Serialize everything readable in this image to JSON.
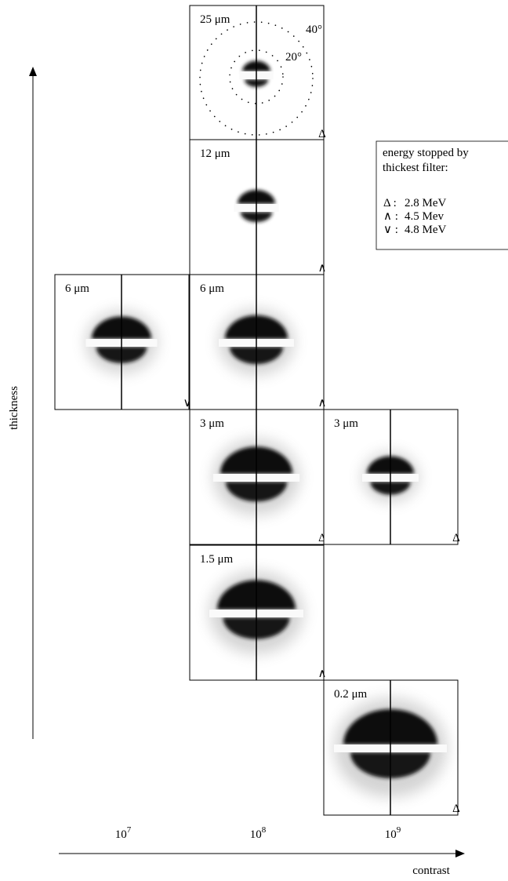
{
  "axes": {
    "y_label": "thickness",
    "x_label": "contrast",
    "x_ticks": [
      {
        "base": "10",
        "exp": "7"
      },
      {
        "base": "10",
        "exp": "8"
      },
      {
        "base": "10",
        "exp": "9"
      }
    ]
  },
  "panels": [
    {
      "label": "25 μm",
      "marker": "Δ"
    },
    {
      "label": "12 μm",
      "marker": "∧"
    },
    {
      "label": "6 μm",
      "marker": "∨"
    },
    {
      "label": "6 μm",
      "marker": "∧"
    },
    {
      "label": "3 μm",
      "marker": "Δ"
    },
    {
      "label": "3 μm",
      "marker": "Δ"
    },
    {
      "label": "1.5 μm",
      "marker": "∧"
    },
    {
      "label": "0.2 μm",
      "marker": "Δ"
    }
  ],
  "angles": [
    "40°",
    "20°"
  ],
  "legend": {
    "title": [
      "energy stopped by",
      "thickest filter:"
    ],
    "items": [
      {
        "symbol": "Δ :",
        "value": "2.8 MeV"
      },
      {
        "symbol": "∧ :",
        "value": "4.5 Mev"
      },
      {
        "symbol": "∨ :",
        "value": "4.8 MeV"
      }
    ]
  }
}
